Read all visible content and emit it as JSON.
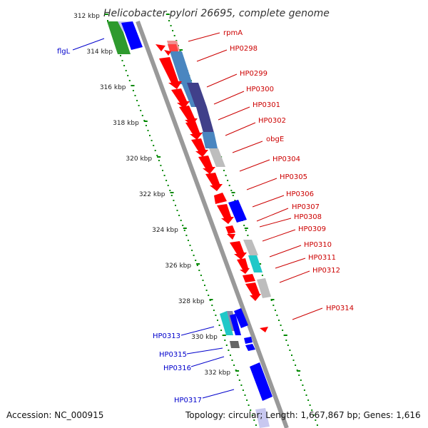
{
  "title": "Helicobacter pylori 26695, complete genome",
  "footer": {
    "accession": "Accession: NC_000915",
    "summary": "Topology: circular; Length: 1,667,867 bp; Genes: 1,616"
  },
  "colors": {
    "forward_gene": "#ff0000",
    "reverse_gene": "#0000ff",
    "forward_label": "#cc0000",
    "reverse_label": "#0000cc",
    "tick": "#008800",
    "backbone": "#999999",
    "cog_blue": "#4a86c0",
    "cog_navy": "#40408a",
    "cog_gray": "#bdbdbd",
    "cog_cyan": "#20c8c8",
    "cog_green": "#2e9a2e"
  },
  "ticks": [
    "312 kbp",
    "314 kbp",
    "316 kbp",
    "318 kbp",
    "320 kbp",
    "322 kbp",
    "324 kbp",
    "326 kbp",
    "328 kbp",
    "330 kbp",
    "332 kbp"
  ],
  "forward_genes": [
    "rpmA",
    "HP0298",
    "HP0299",
    "HP0300",
    "HP0301",
    "HP0302",
    "obgE",
    "HP0304",
    "HP0305",
    "HP0306",
    "HP0307",
    "HP0308",
    "HP0309",
    "HP0310",
    "HP0311",
    "HP0312",
    "HP0314"
  ],
  "reverse_genes": [
    "flgL",
    "HP0313",
    "HP0315",
    "HP0316",
    "HP0317"
  ]
}
